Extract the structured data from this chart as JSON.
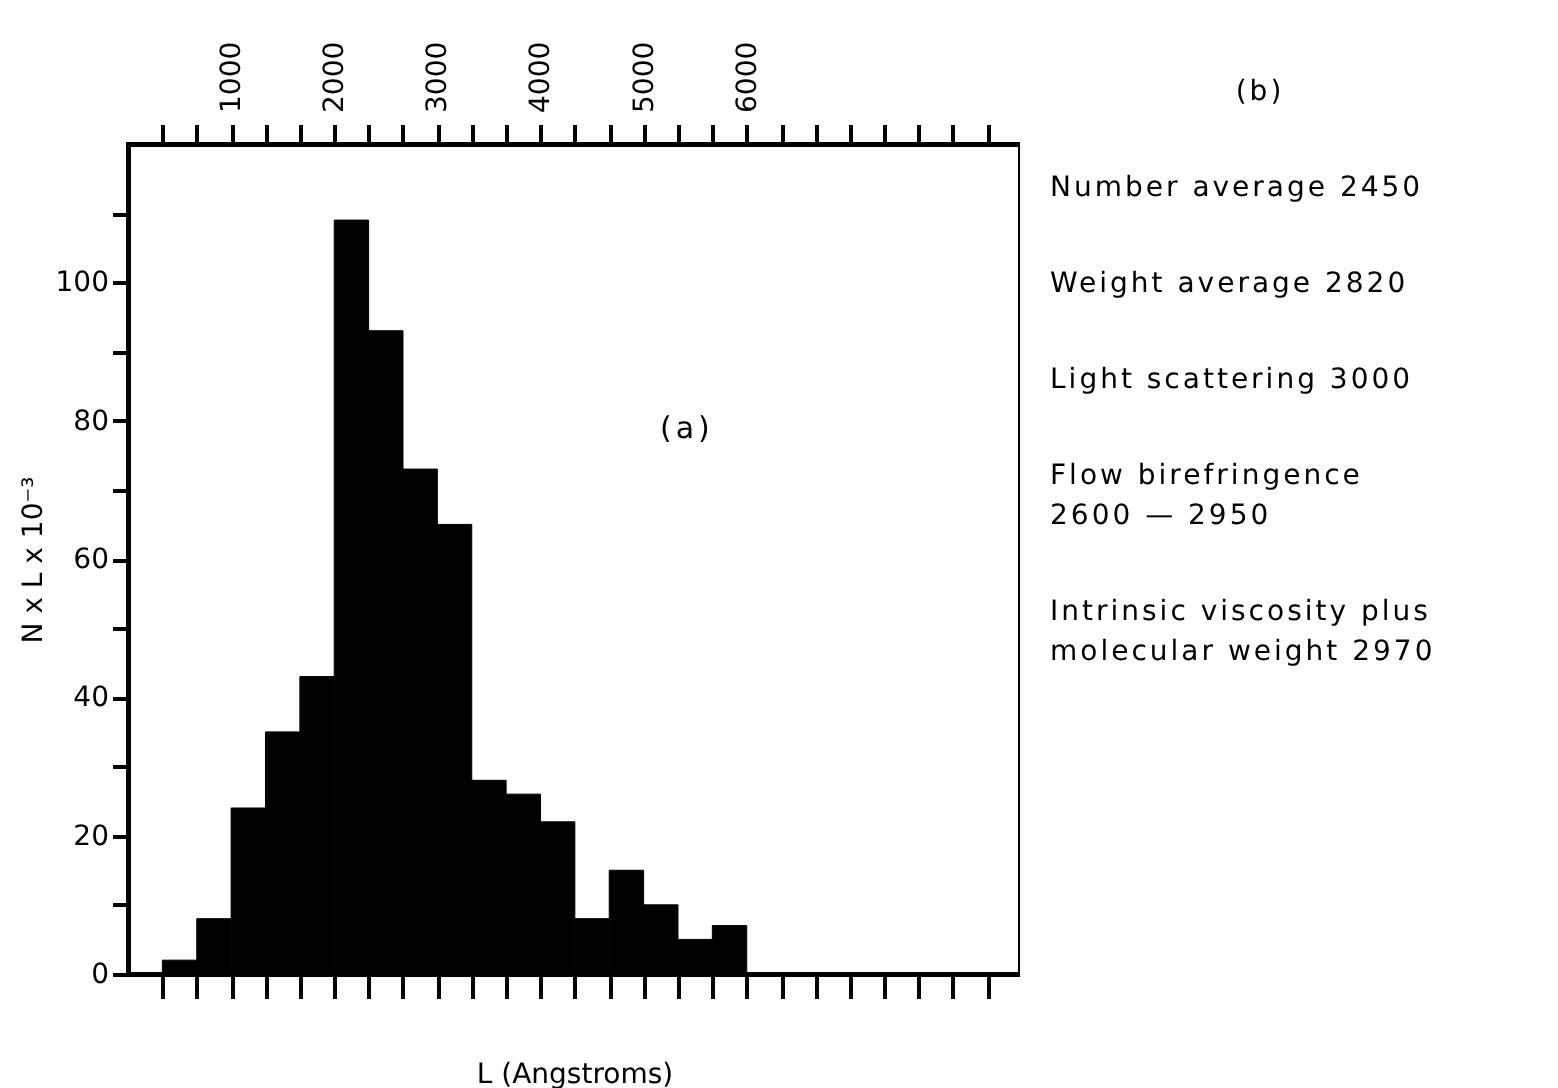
{
  "chart_data": {
    "type": "histogram",
    "xlabel": "L (Angstroms)",
    "ylabel": "N x L x 10⁻³",
    "color": "#000000",
    "grid": false,
    "bins": [
      333.3,
      666.7,
      1000,
      1333.3,
      1666.7,
      2000,
      2333.3,
      2666.7,
      3000,
      3333.3,
      3666.7,
      4000,
      4333.3,
      4666.7,
      5000,
      5333.3,
      5666.7,
      6000
    ],
    "values": [
      2,
      8,
      24,
      35,
      43,
      109,
      93,
      73,
      65,
      28,
      26,
      22,
      8,
      15,
      10,
      5,
      7
    ],
    "xlim": [
      0,
      8650
    ],
    "xticks": [
      {
        "value": 333.3,
        "label": null
      },
      {
        "value": 666.7,
        "label": null
      },
      1000,
      {
        "value": 1333.3,
        "label": null
      },
      {
        "value": 1666.7,
        "label": null
      },
      2000,
      {
        "value": 2333.3,
        "label": null
      },
      {
        "value": 2666.7,
        "label": null
      },
      3000,
      {
        "value": 3333.3,
        "label": null
      },
      {
        "value": 3666.7,
        "label": null
      },
      4000,
      {
        "value": 4333.3,
        "label": null
      },
      {
        "value": 4666.7,
        "label": null
      },
      5000,
      {
        "value": 5333.3,
        "label": null
      },
      {
        "value": 5666.7,
        "label": null
      },
      6000,
      {
        "value": 6333.3,
        "label": null
      },
      {
        "value": 6666.7,
        "label": null
      },
      {
        "value": 7000,
        "label": null
      },
      {
        "value": 7333.3,
        "label": null
      },
      {
        "value": 7666.7,
        "label": null
      },
      {
        "value": 8000,
        "label": null
      },
      {
        "value": 8333.3,
        "label": null
      }
    ],
    "ylim": [
      0,
      120
    ],
    "yticks": [
      0,
      {
        "value": 10,
        "label": null
      },
      20,
      {
        "value": 30,
        "label": null
      },
      40,
      {
        "value": 50,
        "label": null
      },
      60,
      {
        "value": 70,
        "label": null
      },
      80,
      {
        "value": 90,
        "label": null
      },
      100,
      {
        "value": 110,
        "label": null
      }
    ],
    "annotations": [
      "(a)",
      "(b)",
      "Number average 2450",
      "Weight average 2820",
      "Light scattering 3000",
      "Flow birefringence\n2600 — 2950",
      "Intrinsic viscosity plus\nmolecular weight 2970"
    ]
  }
}
